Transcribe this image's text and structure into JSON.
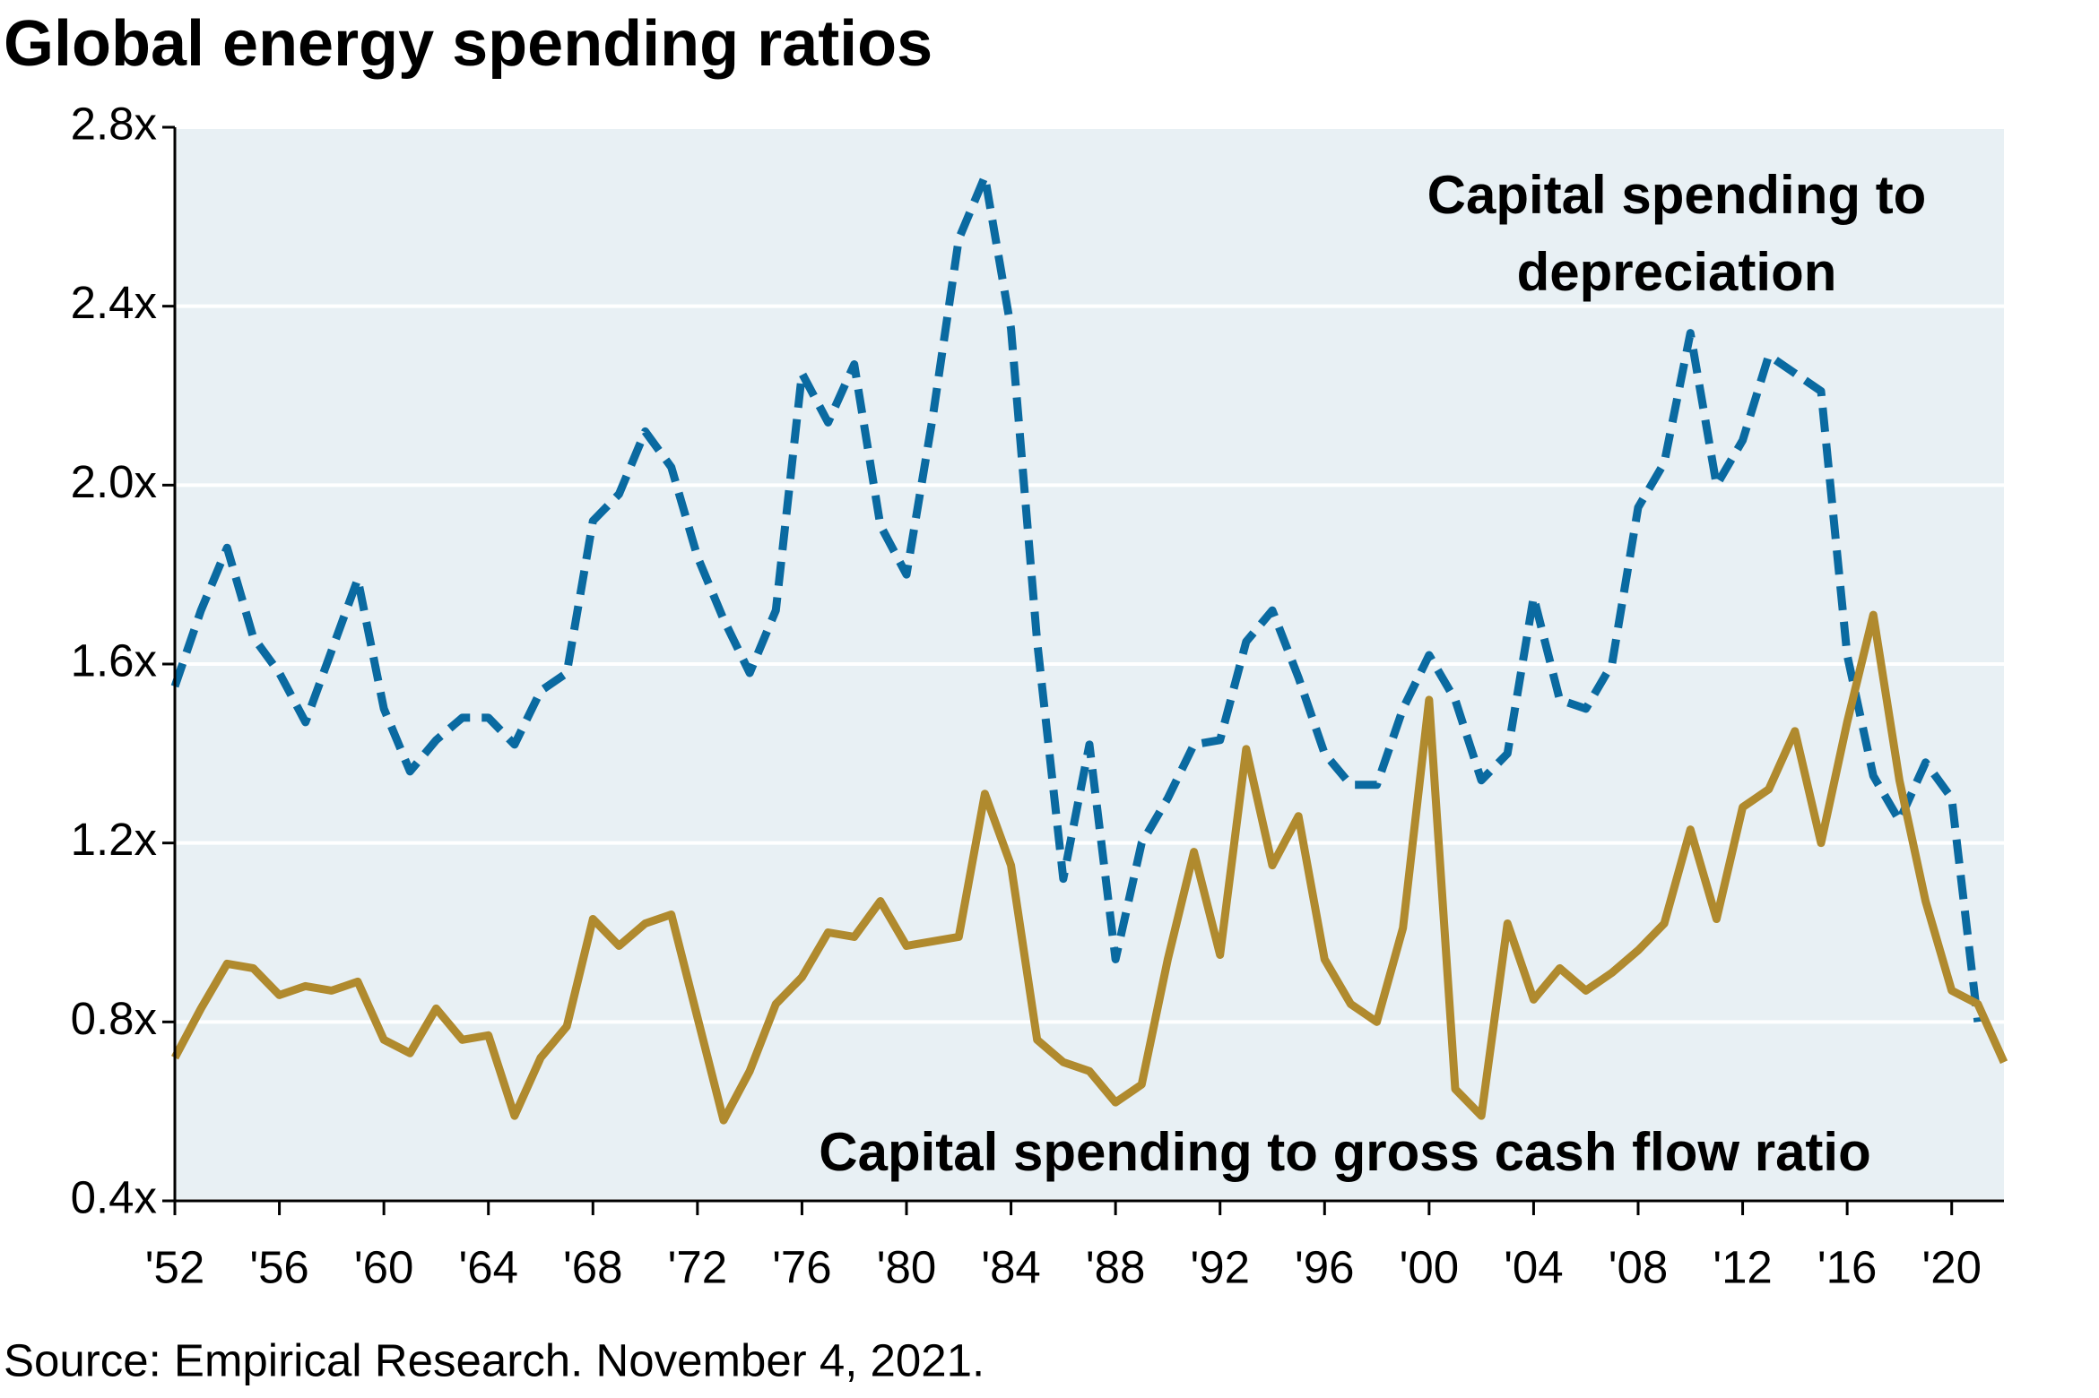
{
  "chart_data": {
    "type": "line",
    "title": "Global energy spending ratios",
    "source": "Source: Empirical Research. November 4, 2021.",
    "x": [
      1952,
      1953,
      1954,
      1955,
      1956,
      1957,
      1958,
      1959,
      1960,
      1961,
      1962,
      1963,
      1964,
      1965,
      1966,
      1967,
      1968,
      1969,
      1970,
      1971,
      1972,
      1973,
      1974,
      1975,
      1976,
      1977,
      1978,
      1979,
      1980,
      1981,
      1982,
      1983,
      1984,
      1985,
      1986,
      1987,
      1988,
      1989,
      1990,
      1991,
      1992,
      1993,
      1994,
      1995,
      1996,
      1997,
      1998,
      1999,
      2000,
      2001,
      2002,
      2003,
      2004,
      2005,
      2006,
      2007,
      2008,
      2009,
      2010,
      2011,
      2012,
      2013,
      2014,
      2015,
      2016,
      2017,
      2018,
      2019,
      2020,
      2021,
      2022
    ],
    "series": [
      {
        "name": "Capital spending to depreciation",
        "color": "#0a6aa1",
        "dashed": true,
        "values": [
          1.55,
          1.72,
          1.86,
          1.66,
          1.58,
          1.47,
          1.63,
          1.79,
          1.5,
          1.36,
          1.43,
          1.48,
          1.48,
          1.42,
          1.54,
          1.58,
          1.92,
          1.98,
          2.12,
          2.04,
          1.84,
          1.7,
          1.58,
          1.72,
          2.25,
          2.14,
          2.27,
          1.91,
          1.8,
          2.15,
          2.55,
          2.69,
          2.35,
          1.65,
          1.12,
          1.42,
          0.94,
          1.2,
          1.3,
          1.42,
          1.43,
          1.65,
          1.72,
          1.57,
          1.4,
          1.33,
          1.33,
          1.5,
          1.62,
          1.52,
          1.34,
          1.4,
          1.75,
          1.52,
          1.5,
          1.6,
          1.95,
          2.05,
          2.34,
          2.0,
          2.1,
          2.29,
          2.25,
          2.21,
          1.62,
          1.35,
          1.25,
          1.38,
          1.3,
          0.8,
          null
        ]
      },
      {
        "name": "Capital spending to gross cash flow ratio",
        "color": "#b08a2e",
        "dashed": false,
        "values": [
          0.72,
          0.83,
          0.93,
          0.92,
          0.86,
          0.88,
          0.87,
          0.89,
          0.76,
          0.73,
          0.83,
          0.76,
          0.77,
          0.59,
          0.72,
          0.79,
          1.03,
          0.97,
          1.02,
          1.04,
          0.81,
          0.58,
          0.69,
          0.84,
          0.9,
          1.0,
          0.99,
          1.07,
          0.97,
          0.98,
          0.99,
          1.31,
          1.15,
          0.76,
          0.71,
          0.69,
          0.62,
          0.66,
          0.94,
          1.18,
          0.95,
          1.41,
          1.15,
          1.26,
          0.94,
          0.84,
          0.8,
          1.01,
          1.52,
          0.65,
          0.59,
          1.02,
          0.85,
          0.92,
          0.87,
          0.91,
          0.96,
          1.02,
          1.23,
          1.03,
          1.28,
          1.32,
          1.45,
          1.2,
          1.47,
          1.71,
          1.34,
          1.07,
          0.87,
          0.84,
          0.71
        ]
      }
    ],
    "annotations": [
      [
        "Capital spending to",
        "depreciation"
      ],
      [
        "Capital spending to gross cash flow ratio"
      ]
    ],
    "xlim": [
      1952,
      2022
    ],
    "xticks": [
      {
        "value": 1952,
        "label": "'52"
      },
      {
        "value": 1956,
        "label": "'56"
      },
      {
        "value": 1960,
        "label": "'60"
      },
      {
        "value": 1964,
        "label": "'64"
      },
      {
        "value": 1968,
        "label": "'68"
      },
      {
        "value": 1972,
        "label": "'72"
      },
      {
        "value": 1976,
        "label": "'76"
      },
      {
        "value": 1980,
        "label": "'80"
      },
      {
        "value": 1984,
        "label": "'84"
      },
      {
        "value": 1988,
        "label": "'88"
      },
      {
        "value": 1992,
        "label": "'92"
      },
      {
        "value": 1996,
        "label": "'96"
      },
      {
        "value": 2000,
        "label": "'00"
      },
      {
        "value": 2004,
        "label": "'04"
      },
      {
        "value": 2008,
        "label": "'08"
      },
      {
        "value": 2012,
        "label": "'12"
      },
      {
        "value": 2016,
        "label": "'16"
      },
      {
        "value": 2020,
        "label": "'20"
      }
    ],
    "ylim": [
      0.4,
      2.8
    ],
    "yticks": [
      {
        "value": 0.4,
        "label": "0.4x"
      },
      {
        "value": 0.8,
        "label": "0.8x"
      },
      {
        "value": 1.2,
        "label": "1.2x"
      },
      {
        "value": 1.6,
        "label": "1.6x"
      },
      {
        "value": 2.0,
        "label": "2.0x"
      },
      {
        "value": 2.4,
        "label": "2.4x"
      },
      {
        "value": 2.8,
        "label": "2.8x"
      }
    ],
    "grid": true
  }
}
